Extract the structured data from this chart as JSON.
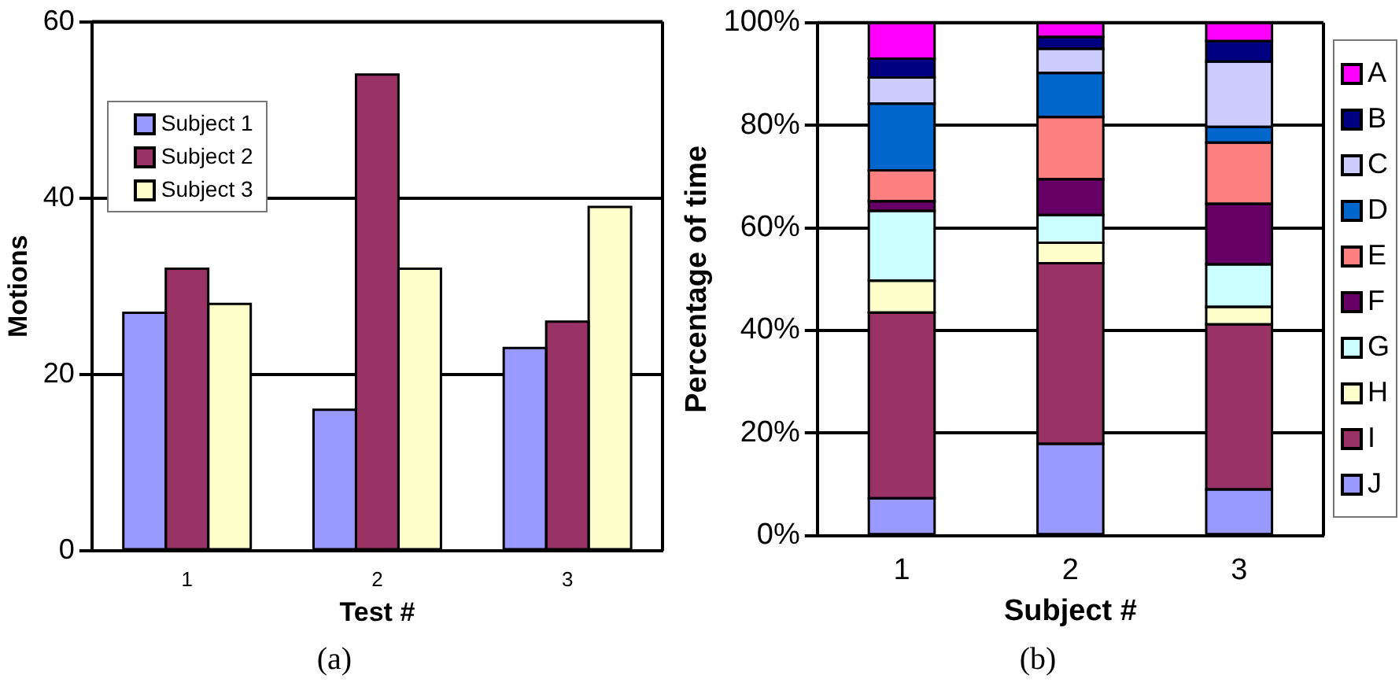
{
  "chart_data": [
    {
      "type": "bar",
      "categories": [
        "1",
        "2",
        "3"
      ],
      "xlabel": "Test #",
      "ylabel": "Motions",
      "series": [
        {
          "name": "Subject 1",
          "color": "#9999ff",
          "values": [
            27,
            16,
            23
          ]
        },
        {
          "name": "Subject 2",
          "color": "#993366",
          "values": [
            32,
            54,
            26
          ]
        },
        {
          "name": "Subject 3",
          "color": "#ffffcc",
          "values": [
            28,
            32,
            39
          ]
        }
      ],
      "ylim": [
        0,
        60
      ],
      "yticks": [
        0,
        20,
        40,
        60
      ],
      "grid": "y",
      "legend": "top left",
      "annotations": [
        "(a)"
      ]
    },
    {
      "type": "bar",
      "stacked": true,
      "categories": [
        "1",
        "2",
        "3"
      ],
      "xlabel": "Subject #",
      "ylabel": "Percentage of time",
      "series": [
        {
          "name": "J",
          "color": "#9999ff",
          "values": [
            7.3,
            17.9,
            9
          ]
        },
        {
          "name": "I",
          "color": "#993366",
          "values": [
            36.2,
            35.2,
            32.2
          ]
        },
        {
          "name": "H",
          "color": "#ffffcc",
          "values": [
            6.2,
            4,
            3.4
          ]
        },
        {
          "name": "G",
          "color": "#ccffff",
          "values": [
            13.6,
            5.4,
            8.3
          ]
        },
        {
          "name": "F",
          "color": "#660066",
          "values": [
            1.9,
            7,
            11.8
          ]
        },
        {
          "name": "E",
          "color": "#ff8080",
          "values": [
            6,
            12.1,
            11.9
          ]
        },
        {
          "name": "D",
          "color": "#0066cc",
          "values": [
            13,
            8.6,
            3.1
          ]
        },
        {
          "name": "C",
          "color": "#ccccff",
          "values": [
            5.1,
            4.7,
            12.7
          ]
        },
        {
          "name": "B",
          "color": "#000080",
          "values": [
            3.7,
            2.3,
            4
          ]
        },
        {
          "name": "A",
          "color": "#ff00ff",
          "values": [
            7,
            2.8,
            3.6
          ]
        }
      ],
      "ylim": [
        0,
        100
      ],
      "yticks": [
        {
          "value": 0,
          "label": "0%"
        },
        {
          "value": 20,
          "label": "20%"
        },
        {
          "value": 40,
          "label": "40%"
        },
        {
          "value": 60,
          "label": "60%"
        },
        {
          "value": 80,
          "label": "80%"
        },
        {
          "value": 100,
          "label": "100%"
        }
      ],
      "grid": "y",
      "legend": "right",
      "annotations": [
        "(b)"
      ]
    }
  ]
}
